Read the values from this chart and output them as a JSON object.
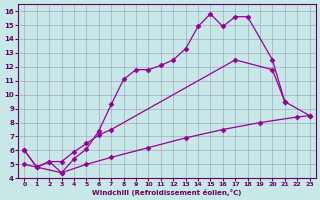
{
  "xlabel": "Windchill (Refroidissement éolien,°C)",
  "xlim": [
    -0.5,
    23.5
  ],
  "ylim": [
    4,
    16.5
  ],
  "xticks": [
    0,
    1,
    2,
    3,
    4,
    5,
    6,
    7,
    8,
    9,
    10,
    11,
    12,
    13,
    14,
    15,
    16,
    17,
    18,
    19,
    20,
    21,
    22,
    23
  ],
  "yticks": [
    4,
    5,
    6,
    7,
    8,
    9,
    10,
    11,
    12,
    13,
    14,
    15,
    16
  ],
  "bg_color": "#c8e8e8",
  "line_color": "#990099",
  "grid_color": "#aaaacc",
  "line1_x": [
    0,
    1,
    2,
    3,
    4,
    5,
    6,
    7,
    8,
    9,
    10,
    11,
    12,
    13,
    14,
    15,
    16,
    17,
    18,
    20,
    21
  ],
  "line1_y": [
    6.0,
    4.8,
    5.2,
    4.4,
    5.4,
    6.1,
    7.4,
    9.3,
    11.1,
    11.8,
    11.8,
    12.1,
    12.5,
    13.3,
    14.9,
    15.8,
    14.9,
    15.6,
    15.6,
    12.5,
    9.5
  ],
  "line2_x": [
    0,
    1,
    2,
    3,
    4,
    5,
    6,
    7,
    17,
    20,
    21,
    23
  ],
  "line2_y": [
    6.0,
    4.8,
    5.2,
    5.2,
    5.9,
    6.5,
    7.1,
    7.5,
    12.5,
    11.8,
    9.5,
    8.5
  ],
  "line3_x": [
    0,
    3,
    5,
    7,
    10,
    13,
    16,
    19,
    22,
    23
  ],
  "line3_y": [
    5.0,
    4.4,
    5.0,
    5.5,
    6.2,
    6.9,
    7.5,
    8.0,
    8.4,
    8.5
  ]
}
